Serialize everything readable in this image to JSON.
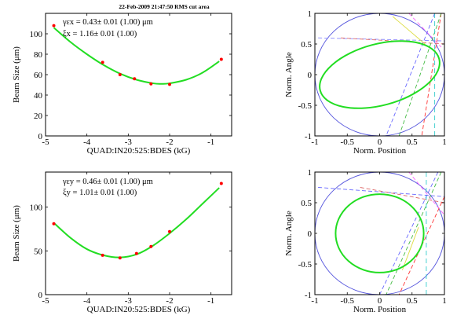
{
  "header": "22-Feb-2009 21:47:50 RMS cut area",
  "chart_data": [
    {
      "id": "beam-x",
      "type": "scatter",
      "xlabel": "QUAD:IN20:525:BDES  (kG)",
      "ylabel": "Beam Size  (μm)",
      "xlim": [
        -5,
        -0.5
      ],
      "ylim": [
        0,
        120
      ],
      "xticks": [
        -5,
        -4,
        -3,
        -2,
        -1
      ],
      "yticks": [
        0,
        20,
        40,
        60,
        80,
        100
      ],
      "points": [
        [
          -4.8,
          108
        ],
        [
          -3.62,
          72
        ],
        [
          -3.2,
          60
        ],
        [
          -2.85,
          56
        ],
        [
          -2.45,
          51
        ],
        [
          -2.0,
          50.5
        ],
        [
          -0.75,
          75
        ]
      ],
      "fit": [
        [
          -4.8,
          106
        ],
        [
          -4.4,
          92
        ],
        [
          -4.0,
          80
        ],
        [
          -3.6,
          69.5
        ],
        [
          -3.2,
          61
        ],
        [
          -2.8,
          55
        ],
        [
          -2.4,
          51.5
        ],
        [
          -2.2,
          51
        ],
        [
          -2.0,
          51.5
        ],
        [
          -1.6,
          55
        ],
        [
          -1.2,
          62
        ],
        [
          -0.8,
          73
        ]
      ],
      "annotations": [
        "γεx =   0.43± 0.01 (1.00) μm",
        "ξx =   1.16± 0.01 (1.00)"
      ],
      "colors": {
        "points": "#ff0000",
        "fit": "#22dd22"
      }
    },
    {
      "id": "phase-x",
      "type": "line",
      "xlabel": "Norm. Position",
      "ylabel": "Norm. Angle",
      "xlim": [
        -1,
        1
      ],
      "ylim": [
        -1,
        1
      ],
      "xticks": [
        -1,
        -0.5,
        0,
        0.5,
        1
      ],
      "yticks": [
        -1,
        -0.5,
        0,
        0.5,
        1
      ],
      "circle_radius": 1,
      "ellipse": {
        "cx": 0,
        "cy": 0,
        "a": 0.95,
        "b": 0.5,
        "angle_deg": 15
      },
      "lines": [
        {
          "color": "#8888ff",
          "dash": "5,3",
          "points": [
            [
              -0.95,
              0.6
            ],
            [
              1.0,
              0.55
            ]
          ]
        },
        {
          "color": "#dd6666",
          "dash": "5,3",
          "points": [
            [
              -0.6,
              0.6
            ],
            [
              1.0,
              0.5
            ]
          ]
        },
        {
          "color": "#dddd44",
          "dash": "",
          "points": [
            [
              0.2,
              0.95
            ],
            [
              0.7,
              0.5
            ]
          ]
        },
        {
          "color": "#ff66ff",
          "dash": "5,3",
          "points": [
            [
              0.45,
              1.0
            ],
            [
              0.95,
              0.45
            ]
          ]
        },
        {
          "color": "#ff3333",
          "dash": "5,3",
          "points": [
            [
              0.95,
              1.0
            ],
            [
              0.65,
              -1.0
            ]
          ]
        },
        {
          "color": "#44bb44",
          "dash": "5,3",
          "points": [
            [
              0.95,
              1.0
            ],
            [
              0.3,
              -1.0
            ]
          ]
        },
        {
          "color": "#6666ff",
          "dash": "5,3",
          "points": [
            [
              0.85,
              1.0
            ],
            [
              0.1,
              -1.0
            ]
          ]
        },
        {
          "color": "#33cccc",
          "dash": "6,4",
          "points": [
            [
              0.85,
              1.0
            ],
            [
              0.85,
              -1.0
            ]
          ]
        }
      ]
    },
    {
      "id": "beam-y",
      "type": "scatter",
      "xlabel": "QUAD:IN20:525:BDES  (kG)",
      "ylabel": "Beam Size  (μm)",
      "xlim": [
        -5,
        -0.5
      ],
      "ylim": [
        0,
        140
      ],
      "xticks": [
        -5,
        -4,
        -3,
        -2,
        -1
      ],
      "yticks": [
        0,
        50,
        100
      ],
      "points": [
        [
          -4.8,
          81
        ],
        [
          -3.62,
          45
        ],
        [
          -3.2,
          42
        ],
        [
          -2.8,
          47
        ],
        [
          -2.45,
          55
        ],
        [
          -2.0,
          72
        ],
        [
          -0.75,
          127
        ]
      ],
      "fit": [
        [
          -4.8,
          82
        ],
        [
          -4.4,
          65
        ],
        [
          -4.0,
          52
        ],
        [
          -3.6,
          45
        ],
        [
          -3.2,
          42.5
        ],
        [
          -2.8,
          46
        ],
        [
          -2.4,
          56
        ],
        [
          -2.0,
          70
        ],
        [
          -1.6,
          86
        ],
        [
          -1.2,
          104
        ],
        [
          -0.8,
          122
        ]
      ],
      "annotations": [
        "γεy =   0.46± 0.01 (1.00) μm",
        "ξy =   1.01± 0.01 (1.00)"
      ],
      "colors": {
        "points": "#ff0000",
        "fit": "#22dd22"
      }
    },
    {
      "id": "phase-y",
      "type": "line",
      "xlabel": "Norm. Position",
      "ylabel": "Norm. Angle",
      "xlim": [
        -1,
        1
      ],
      "ylim": [
        -1,
        1
      ],
      "xticks": [
        -1,
        -0.5,
        0,
        0.5,
        1
      ],
      "yticks": [
        -1,
        -0.5,
        0,
        0.5,
        1
      ],
      "circle_radius": 1,
      "ellipse": {
        "cx": 0,
        "cy": 0,
        "a": 0.68,
        "b": 0.64,
        "angle_deg": 0
      },
      "lines": [
        {
          "color": "#6666ff",
          "dash": "5,3",
          "points": [
            [
              -0.95,
              0.75
            ],
            [
              1.0,
              0.6
            ]
          ]
        },
        {
          "color": "#dd6666",
          "dash": "5,3",
          "points": [
            [
              -0.3,
              0.75
            ],
            [
              1.0,
              0.5
            ]
          ]
        },
        {
          "color": "#ff66ff",
          "dash": "5,3",
          "points": [
            [
              0.45,
              1.0
            ],
            [
              1.0,
              0.3
            ]
          ]
        },
        {
          "color": "#ff3333",
          "dash": "5,3",
          "points": [
            [
              1.0,
              0.6
            ],
            [
              0.3,
              -1.0
            ]
          ]
        },
        {
          "color": "#44bb44",
          "dash": "5,3",
          "points": [
            [
              0.95,
              1.0
            ],
            [
              0.1,
              -1.0
            ]
          ]
        },
        {
          "color": "#6666ff",
          "dash": "5,3",
          "points": [
            [
              0.9,
              1.0
            ],
            [
              0.0,
              -1.0
            ]
          ]
        },
        {
          "color": "#dddd44",
          "dash": "",
          "points": [
            [
              0.6,
              0.1
            ],
            [
              0.35,
              -0.6
            ]
          ]
        },
        {
          "color": "#33cccc",
          "dash": "6,4",
          "points": [
            [
              0.72,
              1.0
            ],
            [
              0.72,
              -1.0
            ]
          ]
        }
      ]
    }
  ]
}
